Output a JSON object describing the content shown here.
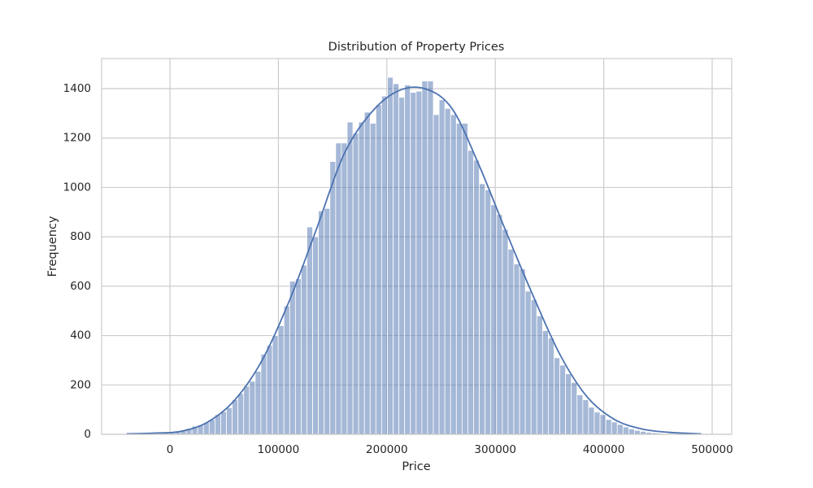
{
  "chart_data": {
    "type": "histogram",
    "title": "Distribution of Property Prices",
    "x_label": "Price",
    "y_label": "Frequency",
    "bins": [
      -38000,
      -32700,
      -27400,
      -22100,
      -16800,
      -11500,
      -6200,
      -900,
      4400,
      9700,
      15000,
      20300,
      25600,
      30900,
      36200,
      41500,
      46800,
      52100,
      57400,
      62700,
      68000,
      73300,
      78600,
      83900,
      89200,
      94500,
      99800,
      105100,
      110400,
      115700,
      121000,
      126300,
      131600,
      136900,
      142200,
      147500,
      152800,
      158100,
      163400,
      168700,
      174000,
      179300,
      184600,
      189900,
      195200,
      200500,
      205800,
      211100,
      216400,
      221700,
      227000,
      232300,
      237600,
      242900,
      248200,
      253500,
      258800,
      264100,
      269400,
      274700,
      280000,
      285300,
      290600,
      295900,
      301200,
      306500,
      311800,
      317100,
      322400,
      327700,
      333000,
      338300,
      343600,
      348900,
      354200,
      359500,
      364800,
      370100,
      375400,
      380700,
      386000,
      391300,
      396600,
      401900,
      407200,
      412500,
      417800,
      423100,
      428400,
      433700,
      439000,
      444300,
      449600,
      454900,
      460200,
      465500,
      470800,
      476100,
      481400,
      486700,
      492000
    ],
    "counts": [
      1,
      1,
      2,
      2,
      3,
      4,
      6,
      9,
      14,
      18,
      24,
      33,
      38,
      48,
      60,
      80,
      92,
      108,
      140,
      165,
      195,
      215,
      255,
      325,
      360,
      400,
      440,
      520,
      620,
      630,
      685,
      840,
      800,
      905,
      915,
      1105,
      1180,
      1180,
      1265,
      1220,
      1265,
      1305,
      1260,
      1335,
      1370,
      1446,
      1420,
      1365,
      1415,
      1385,
      1390,
      1431,
      1431,
      1295,
      1355,
      1320,
      1295,
      1260,
      1260,
      1150,
      1110,
      1015,
      990,
      930,
      890,
      830,
      750,
      690,
      670,
      580,
      545,
      480,
      420,
      390,
      310,
      280,
      245,
      210,
      160,
      140,
      110,
      90,
      80,
      60,
      50,
      40,
      30,
      22,
      16,
      12,
      8,
      6,
      4,
      3,
      2,
      1,
      1,
      1,
      0,
      1
    ],
    "color": "#4c72b0",
    "kde": {
      "x": [
        -40000,
        -15000,
        10000,
        35000,
        60000,
        85000,
        110000,
        135000,
        160000,
        185000,
        210000,
        235000,
        260000,
        285000,
        310000,
        335000,
        360000,
        385000,
        410000,
        435000,
        460000,
        490000
      ],
      "y": [
        2,
        5,
        12,
        50,
        140,
        300,
        540,
        830,
        1130,
        1300,
        1390,
        1400,
        1320,
        1090,
        820,
        560,
        320,
        150,
        60,
        22,
        8,
        2
      ]
    },
    "xlim": [
      -63000,
      518000
    ],
    "ylim": [
      0,
      1522
    ],
    "xticks": [
      0,
      100000,
      200000,
      300000,
      400000,
      500000
    ],
    "yticks": [
      0,
      200,
      400,
      600,
      800,
      1000,
      1200,
      1400
    ],
    "grid": true
  }
}
